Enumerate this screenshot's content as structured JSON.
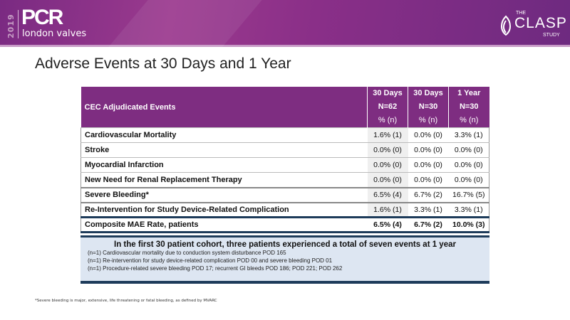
{
  "header": {
    "year": "2019",
    "brand": "PCR",
    "brand_sub": "london valves",
    "study_the": "THE",
    "study_name": "CLASP",
    "study_sub": "STUDY"
  },
  "title": "Adverse Events at 30 Days and 1 Year",
  "table": {
    "label_header": "CEC Adjudicated Events",
    "columns": [
      {
        "period": "30 Days",
        "n": "N=62",
        "unit": "% (n)"
      },
      {
        "period": "30 Days",
        "n": "N=30",
        "unit": "% (n)"
      },
      {
        "period": "1 Year",
        "n": "N=30",
        "unit": "% (n)"
      }
    ],
    "rows": [
      {
        "event": "Cardiovascular  Mortality",
        "values": [
          "1.6% (1)",
          "0.0% (0)",
          "3.3% (1)"
        ]
      },
      {
        "event": "Stroke",
        "values": [
          "0.0% (0)",
          "0.0% (0)",
          "0.0% (0)"
        ]
      },
      {
        "event": "Myocardial  Infarction",
        "values": [
          "0.0% (0)",
          "0.0% (0)",
          "0.0% (0)"
        ]
      },
      {
        "event": "New Need for Renal Replacement Therapy",
        "values": [
          "0.0% (0)",
          "0.0% (0)",
          "0.0% (0)"
        ]
      },
      {
        "event": "Severe Bleeding*",
        "values": [
          "6.5% (4)",
          "6.7% (2)",
          "16.7% (5)"
        ]
      },
      {
        "event": "Re-Intervention for Study Device-Related Complication",
        "values": [
          "1.6% (1)",
          "3.3% (1)",
          "3.3% (1)"
        ]
      },
      {
        "event": "Composite MAE Rate, patients",
        "values": [
          "6.5% (4)",
          "6.7% (2)",
          "10.0% (3)"
        ]
      }
    ]
  },
  "summary": {
    "heading": "In the first 30 patient cohort, three patients experienced a total of seven events at 1 year",
    "lines": [
      "(n=1) Cardiovascular mortality  due to conduction  system disturbance  POD 165",
      "(n=1) Re-intervention  for study device-related  complication  POD 00 and severe bleeding  POD 01",
      "(n=1) Procedure-related  severe bleeding  POD 17; recurrent  GI bleeds  POD 186; POD 221; POD 262"
    ]
  },
  "footnote": "*Severe bleeding is major, extensive, life threatening or fatal bleeding, as defined by MVARC"
}
